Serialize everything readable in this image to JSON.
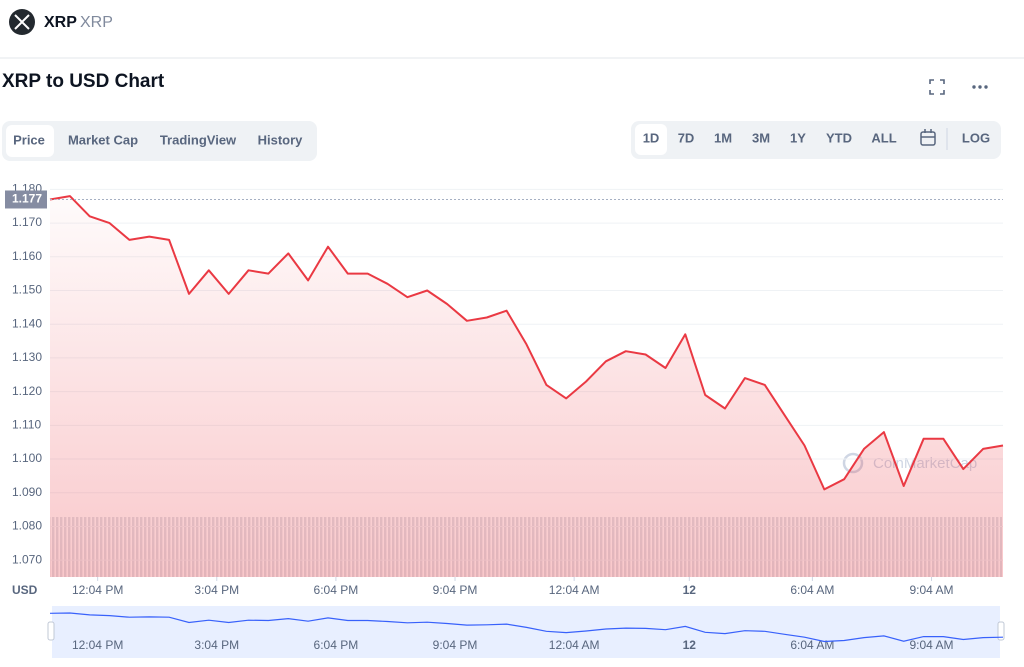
{
  "header": {
    "name": "XRP",
    "symbol": "XRP"
  },
  "title": "XRP to USD Chart",
  "tabs": [
    "Price",
    "Market Cap",
    "TradingView",
    "History"
  ],
  "ranges": [
    "1D",
    "7D",
    "1M",
    "3M",
    "1Y",
    "YTD",
    "ALL"
  ],
  "log_button": "LOG",
  "watermark": "CoinMarketCap",
  "chart_data": {
    "type": "line",
    "y_label": "USD",
    "color": "#ea3943",
    "current_price": 1.177,
    "values": [
      1.177,
      1.178,
      1.172,
      1.17,
      1.165,
      1.166,
      1.165,
      1.149,
      1.156,
      1.149,
      1.156,
      1.155,
      1.161,
      1.153,
      1.163,
      1.155,
      1.155,
      1.152,
      1.148,
      1.15,
      1.146,
      1.141,
      1.142,
      1.144,
      1.134,
      1.122,
      1.118,
      1.123,
      1.129,
      1.132,
      1.131,
      1.127,
      1.137,
      1.119,
      1.115,
      1.124,
      1.122,
      1.113,
      1.104,
      1.091,
      1.094,
      1.103,
      1.108,
      1.092,
      1.106,
      1.106,
      1.097,
      1.103,
      1.104
    ],
    "xlim": [
      0,
      48
    ],
    "xticks": [
      {
        "value": 2.4,
        "label": "12:04 PM"
      },
      {
        "value": 8.4,
        "label": "3:04 PM"
      },
      {
        "value": 14.4,
        "label": "6:04 PM"
      },
      {
        "value": 20.4,
        "label": "9:04 PM"
      },
      {
        "value": 26.4,
        "label": "12:04 AM"
      },
      {
        "value": 32.2,
        "label": "12"
      },
      {
        "value": 38.4,
        "label": "6:04 AM"
      },
      {
        "value": 44.4,
        "label": "9:04 AM"
      }
    ],
    "ylim": [
      1.065,
      1.181
    ],
    "yticks": [
      {
        "value": 1.07,
        "label": "1.070"
      },
      {
        "value": 1.08,
        "label": "1.080"
      },
      {
        "value": 1.09,
        "label": "1.090"
      },
      {
        "value": 1.1,
        "label": "1.100"
      },
      {
        "value": 1.11,
        "label": "1.110"
      },
      {
        "value": 1.12,
        "label": "1.120"
      },
      {
        "value": 1.13,
        "label": "1.130"
      },
      {
        "value": 1.14,
        "label": "1.140"
      },
      {
        "value": 1.15,
        "label": "1.150"
      },
      {
        "value": 1.16,
        "label": "1.160"
      },
      {
        "value": 1.17,
        "label": "1.170"
      },
      {
        "value": 1.18,
        "label": "1.180"
      }
    ],
    "grid": true
  }
}
